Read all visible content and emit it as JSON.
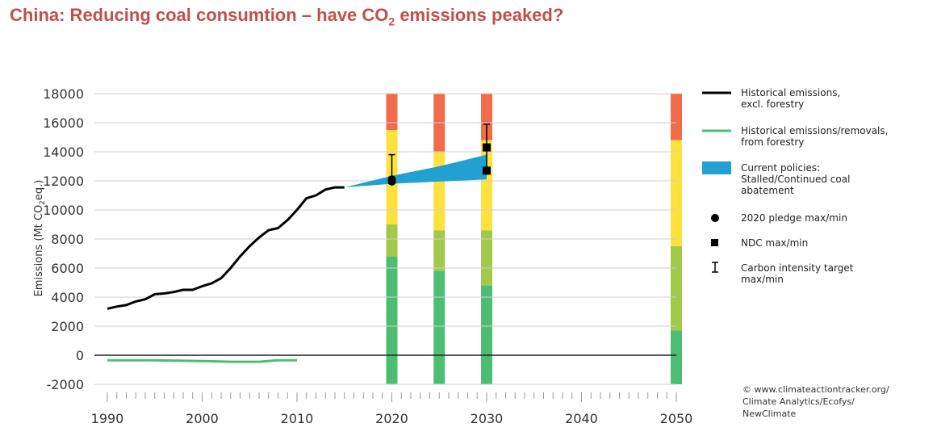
{
  "title_main": "China: Reducing coal consumtion – have CO",
  "title_sub": "2",
  "title_end": " emissions peaked?",
  "chart_data": {
    "type": "line",
    "ylabel": "Emissions (Mt CO2eq.)",
    "ylim": [
      -2000,
      18000
    ],
    "xlim": [
      1990,
      2050
    ],
    "yticks": [
      "18000",
      "16000",
      "14000",
      "12000",
      "10000",
      "8000",
      "6000",
      "4000",
      "2000",
      "0",
      "-2000"
    ],
    "ytick_values": [
      18000,
      16000,
      14000,
      12000,
      10000,
      8000,
      6000,
      4000,
      2000,
      0,
      -2000
    ],
    "xticks": [
      "1990",
      "2000",
      "2010",
      "2020",
      "2030",
      "2040",
      "2050"
    ],
    "xtick_values": [
      1990,
      2000,
      2010,
      2020,
      2030,
      2040,
      2050
    ],
    "series": [
      {
        "name": "Historical emissions, excl. forestry",
        "color": "#000000",
        "x": [
          1990,
          1991,
          1992,
          1993,
          1994,
          1995,
          1996,
          1997,
          1998,
          1999,
          2000,
          2001,
          2002,
          2003,
          2004,
          2005,
          2006,
          2007,
          2008,
          2009,
          2010,
          2011,
          2012,
          2013,
          2014,
          2015
        ],
        "values": [
          3200,
          3350,
          3450,
          3700,
          3850,
          4200,
          4250,
          4350,
          4500,
          4500,
          4750,
          4950,
          5300,
          6000,
          6800,
          7500,
          8100,
          8600,
          8750,
          9300,
          10000,
          10800,
          11000,
          11400,
          11550,
          11550
        ]
      },
      {
        "name": "Historical emissions/removals, from forestry",
        "color": "#4dbd74",
        "x": [
          1990,
          1995,
          2000,
          2003,
          2006,
          2008,
          2010
        ],
        "values": [
          -350,
          -350,
          -400,
          -450,
          -450,
          -350,
          -350
        ]
      }
    ],
    "current_policies": {
      "name": "Current policies: Stalled/Continued coal abatement",
      "color": "#23a0d2",
      "x": [
        2015,
        2020,
        2025,
        2030
      ],
      "upper": [
        11550,
        12350,
        13000,
        13800
      ],
      "lower": [
        11550,
        11800,
        11950,
        12100
      ]
    },
    "pledge_2020": {
      "x": 2020,
      "max": 12100,
      "min": 11950
    },
    "ndc": {
      "x": 2030,
      "max": 14300,
      "min": 12700
    },
    "carbon_intensity": [
      {
        "x": 2020,
        "max": 13800,
        "min": 12200
      },
      {
        "x": 2030,
        "max": 15900,
        "min": 12500
      }
    ],
    "rating_bars": [
      {
        "x": 2020,
        "bands": [
          {
            "color": "#4dbd74",
            "from": -2000,
            "to": 6800
          },
          {
            "color": "#a1c94a",
            "from": 6800,
            "to": 9000
          },
          {
            "color": "#fee13c",
            "from": 9000,
            "to": 15500
          },
          {
            "color": "#f26b4a",
            "from": 15500,
            "to": 18000
          }
        ]
      },
      {
        "x": 2025,
        "bands": [
          {
            "color": "#4dbd74",
            "from": -2000,
            "to": 5800
          },
          {
            "color": "#a1c94a",
            "from": 5800,
            "to": 8600
          },
          {
            "color": "#fee13c",
            "from": 8600,
            "to": 14000
          },
          {
            "color": "#f26b4a",
            "from": 14000,
            "to": 18000
          }
        ]
      },
      {
        "x": 2030,
        "bands": [
          {
            "color": "#4dbd74",
            "from": -2000,
            "to": 4800
          },
          {
            "color": "#a1c94a",
            "from": 4800,
            "to": 8600
          },
          {
            "color": "#fee13c",
            "from": 8600,
            "to": 14800
          },
          {
            "color": "#f26b4a",
            "from": 14800,
            "to": 18000
          }
        ]
      },
      {
        "x": 2050,
        "bands": [
          {
            "color": "#4dbd74",
            "from": -2000,
            "to": 1700
          },
          {
            "color": "#a1c94a",
            "from": 1700,
            "to": 7500
          },
          {
            "color": "#fee13c",
            "from": 7500,
            "to": 14800
          },
          {
            "color": "#f26b4a",
            "from": 14800,
            "to": 18000
          }
        ]
      }
    ]
  },
  "legend": {
    "hist": [
      "Historical emissions,",
      "excl. forestry"
    ],
    "forestry": [
      "Historical emissions/removals,",
      "from forestry"
    ],
    "policies": [
      "Current policies:",
      "Stalled/Continued coal",
      "abatement"
    ],
    "pledge": "2020 pledge max/min",
    "ndc": "NDC max/min",
    "intensity": [
      "Carbon intensity target",
      "max/min"
    ]
  },
  "credit": [
    "© www.climateactiontracker.org/",
    "Climate Analytics/Ecofys/",
    "NewClimate"
  ]
}
